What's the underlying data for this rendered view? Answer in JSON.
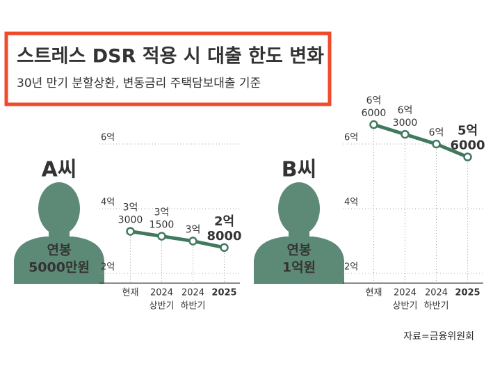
{
  "title": "스트레스 DSR 적용 시 대출 한도 변화",
  "subtitle": "30년 만기 분할상환, 변동금리 주택담보대출 기준",
  "source": "자료=금융위원회",
  "chart_data": [
    {
      "type": "line",
      "name": "A씨",
      "salary": [
        "연봉",
        "5000만원"
      ],
      "categories": [
        [
          "현재"
        ],
        [
          "2024",
          "상반기"
        ],
        [
          "2024",
          "하반기"
        ],
        [
          "2025"
        ]
      ],
      "values": [
        3.3,
        3.15,
        3,
        2.8
      ],
      "value_labels": [
        [
          "3억",
          "3000"
        ],
        [
          "3억",
          "1500"
        ],
        [
          "3억"
        ],
        [
          "2억",
          "8000"
        ]
      ],
      "color": "#3f7a5e",
      "ylim": [
        1.7,
        6.4
      ],
      "yticks": [
        {
          "value": 2,
          "label": "2억"
        },
        {
          "value": 4,
          "label": "4억"
        },
        {
          "value": 6,
          "label": "6억"
        }
      ],
      "grid": true
    },
    {
      "type": "line",
      "name": "B씨",
      "salary": [
        "연봉",
        "1억원"
      ],
      "categories": [
        [
          "현재"
        ],
        [
          "2024",
          "상반기"
        ],
        [
          "2024",
          "하반기"
        ],
        [
          "2025"
        ]
      ],
      "values": [
        6.6,
        6.3,
        6,
        5.6
      ],
      "value_labels": [
        [
          "6억",
          "6000"
        ],
        [
          "6억",
          "3000"
        ],
        [
          "6억"
        ],
        [
          "5억",
          "6000"
        ]
      ],
      "color": "#3f7a5e",
      "ylim": [
        1.7,
        6.4
      ],
      "yticks": [
        {
          "value": 2,
          "label": "2억"
        },
        {
          "value": 4,
          "label": "4억"
        },
        {
          "value": 6,
          "label": "6억"
        }
      ],
      "grid": true
    }
  ]
}
